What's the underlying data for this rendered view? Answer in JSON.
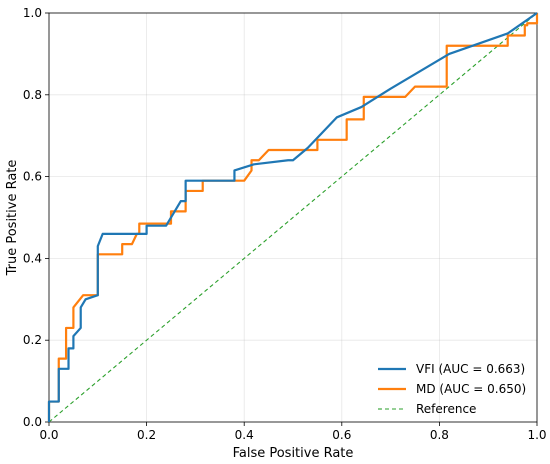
{
  "chart_data": {
    "type": "line",
    "title": "",
    "xlabel": "False Positive Rate",
    "ylabel": "True Positive Rate",
    "xlim": [
      0,
      1
    ],
    "ylim": [
      0,
      1
    ],
    "x_ticks": [
      "0.0",
      "0.2",
      "0.4",
      "0.6",
      "0.8",
      "1.0"
    ],
    "y_ticks": [
      "0.0",
      "0.2",
      "0.4",
      "0.6",
      "0.8",
      "1.0"
    ],
    "grid": true,
    "legend_position": "lower-right",
    "series": [
      {
        "name": "VFI (AUC = 0.663)",
        "color": "#1f77b4",
        "style": "solid",
        "points": [
          [
            0.0,
            0.0
          ],
          [
            0.0,
            0.05
          ],
          [
            0.02,
            0.05
          ],
          [
            0.02,
            0.13
          ],
          [
            0.04,
            0.13
          ],
          [
            0.04,
            0.18
          ],
          [
            0.05,
            0.18
          ],
          [
            0.05,
            0.21
          ],
          [
            0.065,
            0.23
          ],
          [
            0.065,
            0.28
          ],
          [
            0.075,
            0.3
          ],
          [
            0.1,
            0.31
          ],
          [
            0.1,
            0.43
          ],
          [
            0.11,
            0.46
          ],
          [
            0.2,
            0.46
          ],
          [
            0.2,
            0.48
          ],
          [
            0.24,
            0.48
          ],
          [
            0.27,
            0.54
          ],
          [
            0.28,
            0.54
          ],
          [
            0.28,
            0.59
          ],
          [
            0.32,
            0.59
          ],
          [
            0.38,
            0.59
          ],
          [
            0.38,
            0.615
          ],
          [
            0.42,
            0.63
          ],
          [
            0.49,
            0.64
          ],
          [
            0.5,
            0.64
          ],
          [
            0.53,
            0.67
          ],
          [
            0.59,
            0.745
          ],
          [
            0.64,
            0.77
          ],
          [
            0.7,
            0.815
          ],
          [
            0.82,
            0.9
          ],
          [
            0.94,
            0.95
          ],
          [
            1.0,
            1.0
          ]
        ]
      },
      {
        "name": "MD (AUC = 0.650)",
        "color": "#ff7f0e",
        "style": "solid",
        "points": [
          [
            0.0,
            0.0
          ],
          [
            0.0,
            0.05
          ],
          [
            0.02,
            0.05
          ],
          [
            0.02,
            0.155
          ],
          [
            0.035,
            0.155
          ],
          [
            0.035,
            0.23
          ],
          [
            0.05,
            0.23
          ],
          [
            0.05,
            0.28
          ],
          [
            0.07,
            0.31
          ],
          [
            0.1,
            0.31
          ],
          [
            0.1,
            0.41
          ],
          [
            0.15,
            0.41
          ],
          [
            0.15,
            0.435
          ],
          [
            0.17,
            0.435
          ],
          [
            0.18,
            0.46
          ],
          [
            0.185,
            0.46
          ],
          [
            0.185,
            0.485
          ],
          [
            0.25,
            0.485
          ],
          [
            0.25,
            0.515
          ],
          [
            0.28,
            0.515
          ],
          [
            0.28,
            0.565
          ],
          [
            0.315,
            0.565
          ],
          [
            0.315,
            0.59
          ],
          [
            0.4,
            0.59
          ],
          [
            0.415,
            0.615
          ],
          [
            0.415,
            0.64
          ],
          [
            0.43,
            0.64
          ],
          [
            0.45,
            0.665
          ],
          [
            0.55,
            0.665
          ],
          [
            0.55,
            0.69
          ],
          [
            0.61,
            0.69
          ],
          [
            0.61,
            0.74
          ],
          [
            0.645,
            0.74
          ],
          [
            0.645,
            0.795
          ],
          [
            0.73,
            0.795
          ],
          [
            0.75,
            0.82
          ],
          [
            0.815,
            0.82
          ],
          [
            0.815,
            0.92
          ],
          [
            0.94,
            0.92
          ],
          [
            0.94,
            0.945
          ],
          [
            0.975,
            0.945
          ],
          [
            0.975,
            0.97
          ],
          [
            0.98,
            0.97
          ],
          [
            0.98,
            0.975
          ],
          [
            1.0,
            0.975
          ],
          [
            1.0,
            1.0
          ]
        ]
      },
      {
        "name": "Reference",
        "color": "#2ca02c",
        "style": "dashed",
        "points": [
          [
            0,
            0
          ],
          [
            1,
            1
          ]
        ]
      }
    ]
  }
}
